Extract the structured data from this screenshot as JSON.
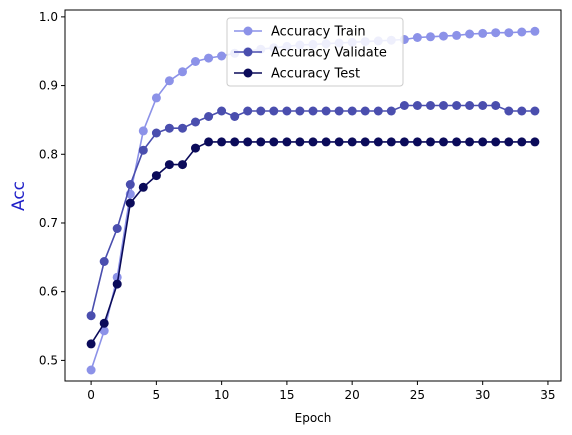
{
  "chart_data": {
    "type": "line",
    "title": "",
    "xlabel": "Epoch",
    "ylabel": "Acc",
    "xlim": [
      -2,
      36
    ],
    "ylim": [
      0.47,
      1.01
    ],
    "xticks": [
      0,
      5,
      10,
      15,
      20,
      25,
      30,
      35
    ],
    "yticks": [
      0.5,
      0.6,
      0.7,
      0.8,
      0.9,
      1.0
    ],
    "xtick_labels": [
      "0",
      "5",
      "10",
      "15",
      "20",
      "25",
      "30",
      "35"
    ],
    "ytick_labels": [
      "0.5",
      "0.6",
      "0.7",
      "0.8",
      "0.9",
      "1.0"
    ],
    "grid": false,
    "legend_position": "top-center",
    "x": [
      0,
      1,
      2,
      3,
      4,
      5,
      6,
      7,
      8,
      9,
      10,
      11,
      12,
      13,
      14,
      15,
      16,
      17,
      18,
      19,
      20,
      21,
      22,
      23,
      24,
      25,
      26,
      27,
      28,
      29,
      30,
      31,
      32,
      33,
      34
    ],
    "series": [
      {
        "name": "Accuracy Train",
        "color": "#8c92e8",
        "values": [
          0.486,
          0.543,
          0.621,
          0.742,
          0.834,
          0.882,
          0.907,
          0.92,
          0.935,
          0.94,
          0.943,
          0.947,
          0.95,
          0.953,
          0.955,
          0.957,
          0.959,
          0.96,
          0.961,
          0.962,
          0.963,
          0.964,
          0.965,
          0.966,
          0.967,
          0.97,
          0.971,
          0.972,
          0.973,
          0.975,
          0.976,
          0.977,
          0.977,
          0.978,
          0.979
        ]
      },
      {
        "name": "Accuracy Validate",
        "color": "#4a4eae",
        "values": [
          0.565,
          0.644,
          0.692,
          0.756,
          0.806,
          0.831,
          0.838,
          0.838,
          0.847,
          0.855,
          0.863,
          0.855,
          0.863,
          0.863,
          0.863,
          0.863,
          0.863,
          0.863,
          0.863,
          0.863,
          0.863,
          0.863,
          0.863,
          0.863,
          0.871,
          0.871,
          0.871,
          0.871,
          0.871,
          0.871,
          0.871,
          0.871,
          0.863,
          0.863,
          0.863
        ]
      },
      {
        "name": "Accuracy Test",
        "color": "#0b0b5a",
        "values": [
          0.524,
          0.554,
          0.611,
          0.729,
          0.752,
          0.769,
          0.785,
          0.785,
          0.809,
          0.818,
          0.818,
          0.818,
          0.818,
          0.818,
          0.818,
          0.818,
          0.818,
          0.818,
          0.818,
          0.818,
          0.818,
          0.818,
          0.818,
          0.818,
          0.818,
          0.818,
          0.818,
          0.818,
          0.818,
          0.818,
          0.818,
          0.818,
          0.818,
          0.818,
          0.818
        ]
      }
    ],
    "ylabel_color": "#1f1fc8"
  }
}
